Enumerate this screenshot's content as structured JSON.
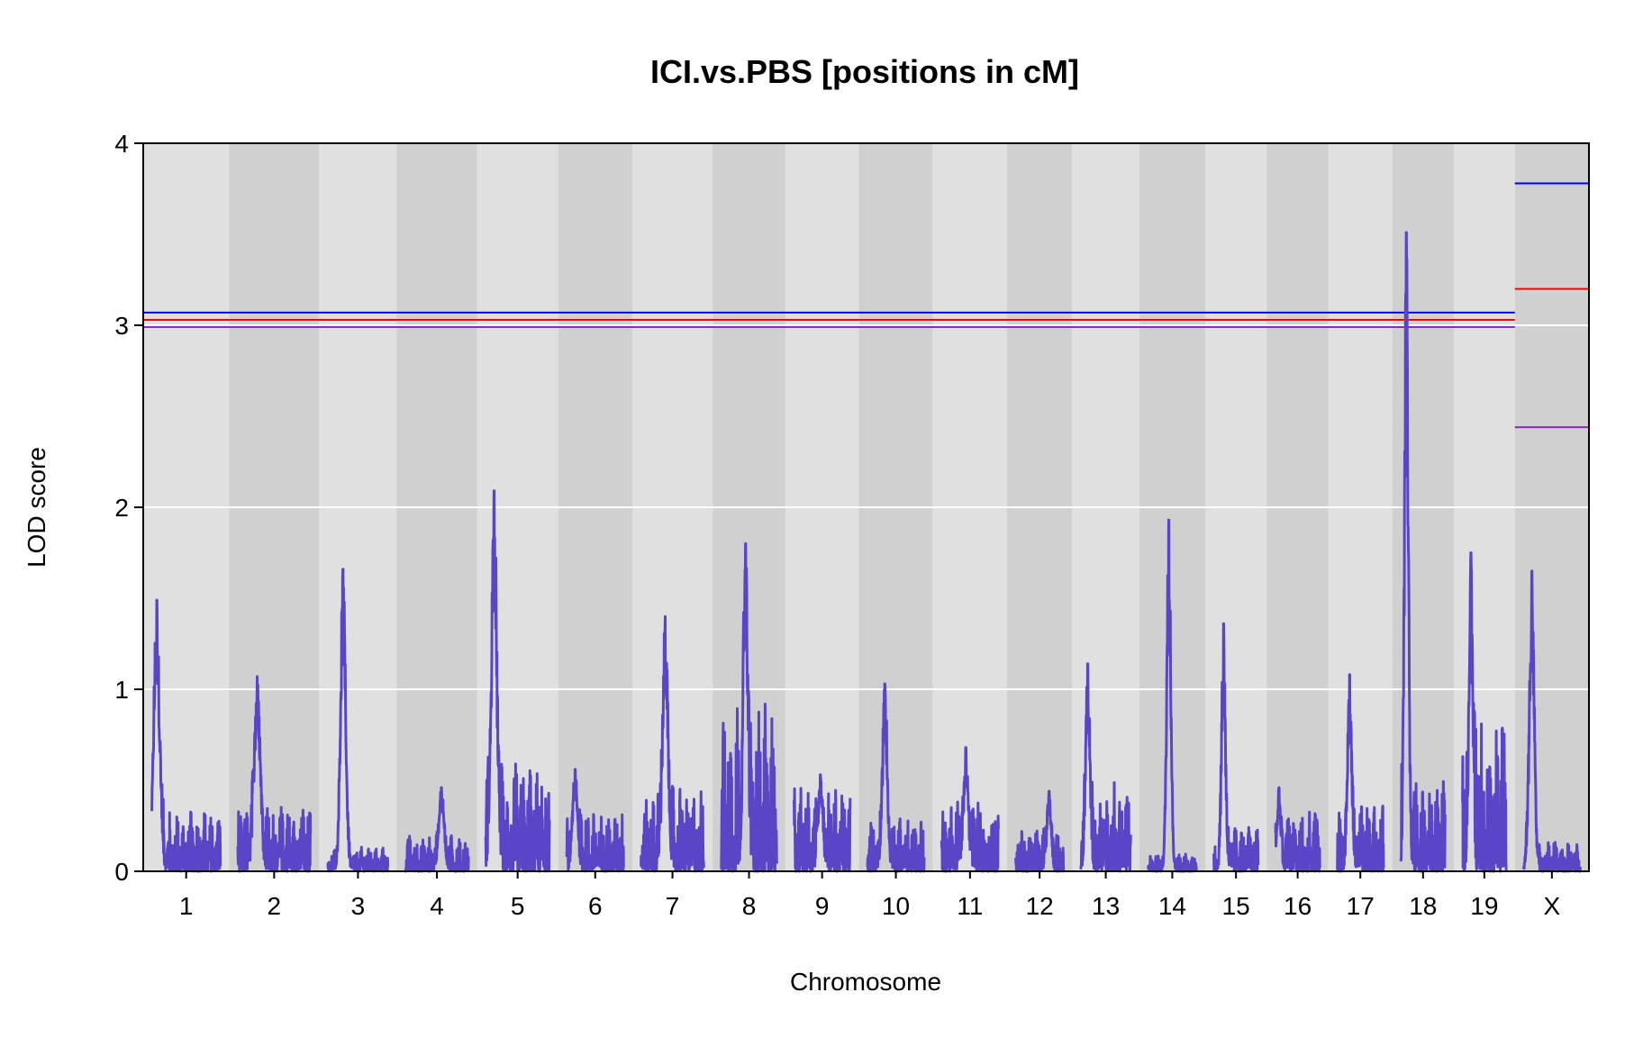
{
  "chart_data": {
    "type": "line",
    "title": "ICI.vs.PBS [positions in cM]",
    "xlabel": "Chromosome",
    "ylabel": "LOD score",
    "ylim": [
      0,
      4
    ],
    "y_ticks": [
      "0",
      "1",
      "2",
      "3",
      "4"
    ],
    "grid": true,
    "colors": {
      "lod": "#5a45c6",
      "threshold_blue": "#0000ff",
      "threshold_red": "#ff0000",
      "threshold_purple": "#8b25d8",
      "band_light": "#e0e0e0",
      "band_dark": "#d0d0d0"
    },
    "thresholds": {
      "autosome": [
        {
          "color": "blue",
          "value": 3.07
        },
        {
          "color": "red",
          "value": 3.03
        },
        {
          "color": "purple",
          "value": 2.99
        }
      ],
      "X": [
        {
          "color": "blue",
          "value": 3.78
        },
        {
          "color": "red",
          "value": 3.2
        },
        {
          "color": "purple",
          "value": 2.44
        }
      ]
    },
    "chromosomes": [
      {
        "name": "1",
        "start_cm": 0,
        "end_cm": 99,
        "peak_cm": 7,
        "peak_lod": 1.49,
        "base": 0.2
      },
      {
        "name": "2",
        "start_cm": 0,
        "end_cm": 105,
        "peak_cm": 28,
        "peak_lod": 1.07,
        "base": 0.22
      },
      {
        "name": "3",
        "start_cm": 0,
        "end_cm": 87,
        "peak_cm": 22,
        "peak_lod": 1.66,
        "base": 0.08
      },
      {
        "name": "4",
        "start_cm": 0,
        "end_cm": 91,
        "peak_cm": 52,
        "peak_lod": 0.46,
        "base": 0.12
      },
      {
        "name": "5",
        "start_cm": 0,
        "end_cm": 92,
        "peak_cm": 12,
        "peak_lod": 2.09,
        "base": 0.35
      },
      {
        "name": "6",
        "start_cm": 0,
        "end_cm": 82,
        "peak_cm": 12,
        "peak_lod": 0.56,
        "base": 0.2
      },
      {
        "name": "7",
        "start_cm": 0,
        "end_cm": 91,
        "peak_cm": 35,
        "peak_lod": 1.4,
        "base": 0.28
      },
      {
        "name": "8",
        "start_cm": 0,
        "end_cm": 80,
        "peak_cm": 35,
        "peak_lod": 1.8,
        "base": 0.55
      },
      {
        "name": "9",
        "start_cm": 0,
        "end_cm": 81,
        "peak_cm": 38,
        "peak_lod": 0.53,
        "base": 0.28
      },
      {
        "name": "10",
        "start_cm": 0,
        "end_cm": 82,
        "peak_cm": 25,
        "peak_lod": 1.03,
        "base": 0.18
      },
      {
        "name": "11",
        "start_cm": 0,
        "end_cm": 82,
        "peak_cm": 35,
        "peak_lod": 0.68,
        "base": 0.25
      },
      {
        "name": "12",
        "start_cm": 0,
        "end_cm": 69,
        "peak_cm": 48,
        "peak_lod": 0.44,
        "base": 0.15
      },
      {
        "name": "13",
        "start_cm": 0,
        "end_cm": 72,
        "peak_cm": 10,
        "peak_lod": 1.14,
        "base": 0.3
      },
      {
        "name": "14",
        "start_cm": 0,
        "end_cm": 70,
        "peak_cm": 30,
        "peak_lod": 1.93,
        "base": 0.06
      },
      {
        "name": "15",
        "start_cm": 0,
        "end_cm": 64,
        "peak_cm": 14,
        "peak_lod": 1.36,
        "base": 0.15
      },
      {
        "name": "16",
        "start_cm": 0,
        "end_cm": 64,
        "peak_cm": 5,
        "peak_lod": 0.46,
        "base": 0.2
      },
      {
        "name": "17",
        "start_cm": 0,
        "end_cm": 67,
        "peak_cm": 18,
        "peak_lod": 1.08,
        "base": 0.22
      },
      {
        "name": "18",
        "start_cm": 0,
        "end_cm": 64,
        "peak_cm": 8,
        "peak_lod": 3.51,
        "base": 0.3
      },
      {
        "name": "19",
        "start_cm": 0,
        "end_cm": 63,
        "peak_cm": 12,
        "peak_lod": 1.75,
        "base": 0.5
      },
      {
        "name": "X",
        "start_cm": 0,
        "end_cm": 82,
        "peak_cm": 12,
        "peak_lod": 1.65,
        "base": 0.1
      }
    ]
  }
}
